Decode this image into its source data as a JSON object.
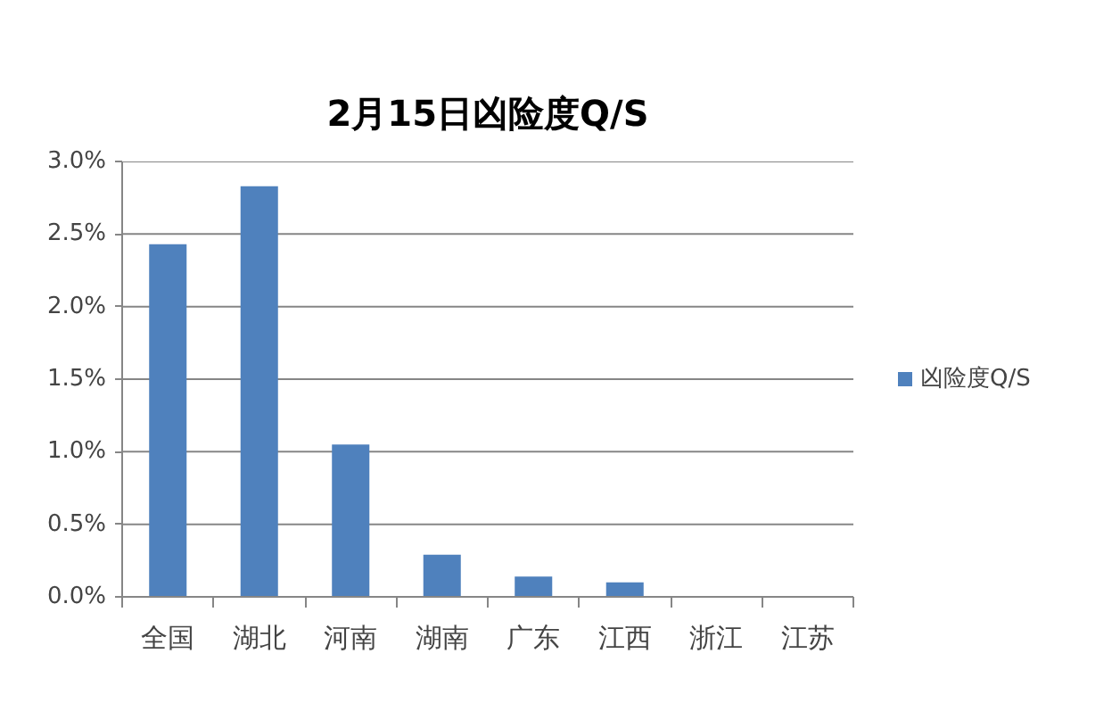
{
  "chart_data": {
    "type": "bar",
    "title": "2月15日凶险度Q/S",
    "categories": [
      "全国",
      "湖北",
      "河南",
      "湖南",
      "广东",
      "江西",
      "浙江",
      "江苏"
    ],
    "series": [
      {
        "name": "凶险度Q/S",
        "color": "#4f81bd",
        "values": [
          2.43,
          2.83,
          1.05,
          0.29,
          0.14,
          0.1,
          0,
          0
        ]
      }
    ],
    "ylim": [
      0,
      3.0
    ],
    "yticks": [
      {
        "value": 0,
        "label": "0.0%"
      },
      {
        "value": 0.5,
        "label": "0.5%"
      },
      {
        "value": 1.0,
        "label": "1.0%"
      },
      {
        "value": 1.5,
        "label": "1.5%"
      },
      {
        "value": 2.0,
        "label": "2.0%"
      },
      {
        "value": 2.5,
        "label": "2.5%"
      },
      {
        "value": 3.0,
        "label": "3.0%"
      }
    ],
    "grid": "y",
    "legend": "right"
  }
}
